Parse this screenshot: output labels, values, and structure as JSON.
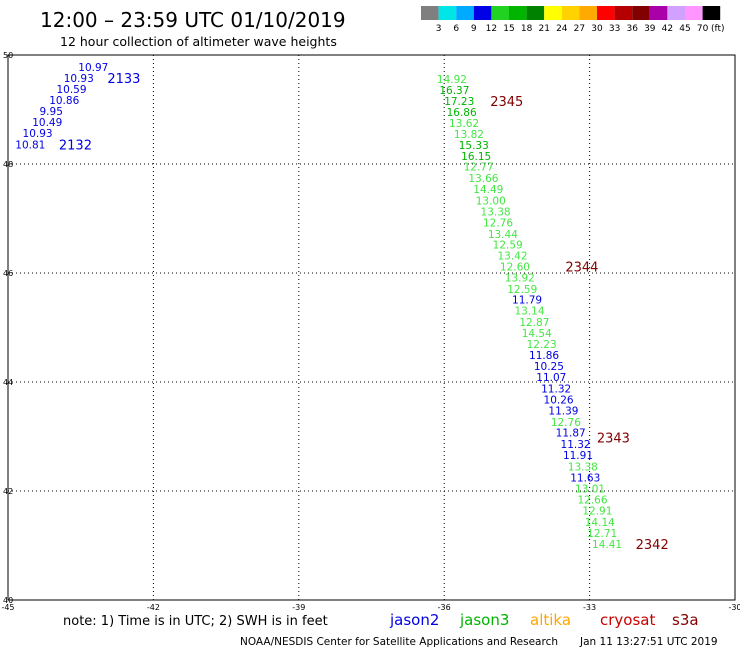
{
  "header": {
    "title": "12:00 – 23:59 UTC 01/10/2019",
    "subtitle": "12 hour collection of altimeter wave heights"
  },
  "legend_scale": {
    "labels": [
      "3",
      "6",
      "9",
      "12",
      "15",
      "18",
      "21",
      "24",
      "27",
      "30",
      "33",
      "36",
      "39",
      "42",
      "45",
      "70"
    ],
    "unit": "(ft)",
    "colors": [
      "#7f7f7f",
      "#00e6e6",
      "#00aaff",
      "#0000e6",
      "#22d222",
      "#00b400",
      "#008200",
      "#ffff00",
      "#ffd200",
      "#ffaa00",
      "#ff0000",
      "#b40000",
      "#820000",
      "#aa00aa",
      "#d2a0ff",
      "#ff96ff",
      "#000000"
    ]
  },
  "satellites": [
    {
      "name": "jason2",
      "color": "#0000e6"
    },
    {
      "name": "jason3",
      "color": "#00b400"
    },
    {
      "name": "altika",
      "color": "#ffa500"
    },
    {
      "name": "cryosat",
      "color": "#c80000"
    },
    {
      "name": "s3a",
      "color": "#820000"
    }
  ],
  "note": "note: 1) Time is in UTC; 2) SWH is in feet",
  "footer": {
    "agency": "NOAA/NESDIS Center for Satellite Applications and Research",
    "timestamp": "Jan 11 13:27:51 UTC 2019"
  },
  "chart_data": {
    "type": "scatter",
    "xlim": [
      -45,
      -30
    ],
    "ylim": [
      40,
      50
    ],
    "x_ticks": [
      "-45",
      "-42",
      "-39",
      "-36",
      "-33",
      "-30"
    ],
    "y_ticks": [
      "40",
      "42",
      "44",
      "46",
      "48",
      "50"
    ],
    "grid": true,
    "value_colors": {
      "jason2": "#0000e6",
      "light_green": "#44e644",
      "green": "#00b400"
    },
    "tracks": [
      {
        "name": "jason2",
        "points": [
          {
            "lon": -43.55,
            "lat": 49.78,
            "v": "10.97"
          },
          {
            "lon": -43.85,
            "lat": 49.58,
            "v": "10.93"
          },
          {
            "lon": -44.0,
            "lat": 49.38,
            "v": "10.59"
          },
          {
            "lon": -44.15,
            "lat": 49.17,
            "v": "10.86"
          },
          {
            "lon": -44.35,
            "lat": 48.97,
            "v": "9.95"
          },
          {
            "lon": -44.5,
            "lat": 48.77,
            "v": "10.49"
          },
          {
            "lon": -44.7,
            "lat": 48.57,
            "v": "10.93"
          },
          {
            "lon": -44.85,
            "lat": 48.36,
            "v": "10.81"
          }
        ]
      },
      {
        "name": "ascending-track",
        "points": [
          {
            "lon": -36.15,
            "lat": 49.56,
            "v": "14.92",
            "c": "light_green"
          },
          {
            "lon": -36.1,
            "lat": 49.36,
            "v": "16.37",
            "c": "green"
          },
          {
            "lon": -36.0,
            "lat": 49.16,
            "v": "17.23",
            "c": "green"
          },
          {
            "lon": -35.95,
            "lat": 48.95,
            "v": "16.86",
            "c": "green"
          },
          {
            "lon": -35.9,
            "lat": 48.75,
            "v": "13.62",
            "c": "light_green"
          },
          {
            "lon": -35.8,
            "lat": 48.55,
            "v": "13.82",
            "c": "light_green"
          },
          {
            "lon": -35.7,
            "lat": 48.35,
            "v": "15.33",
            "c": "green"
          },
          {
            "lon": -35.65,
            "lat": 48.15,
            "v": "16.15",
            "c": "green"
          },
          {
            "lon": -35.6,
            "lat": 47.95,
            "v": "12.77",
            "c": "light_green"
          },
          {
            "lon": -35.5,
            "lat": 47.74,
            "v": "13.66",
            "c": "light_green"
          },
          {
            "lon": -35.4,
            "lat": 47.54,
            "v": "14.49",
            "c": "light_green"
          },
          {
            "lon": -35.35,
            "lat": 47.33,
            "v": "13.00",
            "c": "light_green"
          },
          {
            "lon": -35.25,
            "lat": 47.13,
            "v": "13.38",
            "c": "light_green"
          },
          {
            "lon": -35.2,
            "lat": 46.93,
            "v": "12.76",
            "c": "light_green"
          },
          {
            "lon": -35.1,
            "lat": 46.72,
            "v": "13.44",
            "c": "light_green"
          },
          {
            "lon": -35.0,
            "lat": 46.52,
            "v": "12.59",
            "c": "light_green"
          },
          {
            "lon": -34.9,
            "lat": 46.32,
            "v": "13.42",
            "c": "light_green"
          },
          {
            "lon": -34.85,
            "lat": 46.12,
            "v": "12.60",
            "c": "light_green"
          },
          {
            "lon": -34.75,
            "lat": 45.92,
            "v": "13.92",
            "c": "light_green"
          },
          {
            "lon": -34.7,
            "lat": 45.71,
            "v": "12.59",
            "c": "light_green"
          },
          {
            "lon": -34.6,
            "lat": 45.51,
            "v": "11.79",
            "c": "jason2"
          },
          {
            "lon": -34.55,
            "lat": 45.31,
            "v": "13.14",
            "c": "light_green"
          },
          {
            "lon": -34.45,
            "lat": 45.1,
            "v": "12.87",
            "c": "light_green"
          },
          {
            "lon": -34.4,
            "lat": 44.9,
            "v": "14.54",
            "c": "light_green"
          },
          {
            "lon": -34.3,
            "lat": 44.7,
            "v": "12.23",
            "c": "light_green"
          },
          {
            "lon": -34.25,
            "lat": 44.5,
            "v": "11.86",
            "c": "jason2"
          },
          {
            "lon": -34.15,
            "lat": 44.29,
            "v": "10.25",
            "c": "jason2"
          },
          {
            "lon": -34.1,
            "lat": 44.09,
            "v": "11.07",
            "c": "jason2"
          },
          {
            "lon": -34.0,
            "lat": 43.88,
            "v": "11.32",
            "c": "jason2"
          },
          {
            "lon": -33.95,
            "lat": 43.68,
            "v": "10.26",
            "c": "jason2"
          },
          {
            "lon": -33.85,
            "lat": 43.48,
            "v": "11.39",
            "c": "jason2"
          },
          {
            "lon": -33.8,
            "lat": 43.27,
            "v": "12.76",
            "c": "light_green"
          },
          {
            "lon": -33.7,
            "lat": 43.07,
            "v": "11.87",
            "c": "jason2"
          },
          {
            "lon": -33.6,
            "lat": 42.86,
            "v": "11.32",
            "c": "jason2"
          },
          {
            "lon": -33.55,
            "lat": 42.66,
            "v": "11.91",
            "c": "jason2"
          },
          {
            "lon": -33.45,
            "lat": 42.45,
            "v": "13.38",
            "c": "light_green"
          },
          {
            "lon": -33.4,
            "lat": 42.25,
            "v": "11.63",
            "c": "jason2"
          },
          {
            "lon": -33.3,
            "lat": 42.05,
            "v": "13.01",
            "c": "light_green"
          },
          {
            "lon": -33.25,
            "lat": 41.84,
            "v": "12.66",
            "c": "light_green"
          },
          {
            "lon": -33.15,
            "lat": 41.64,
            "v": "12.91",
            "c": "light_green"
          },
          {
            "lon": -33.1,
            "lat": 41.43,
            "v": "14.14",
            "c": "light_green"
          },
          {
            "lon": -33.05,
            "lat": 41.23,
            "v": "12.71",
            "c": "light_green"
          },
          {
            "lon": -32.95,
            "lat": 41.03,
            "v": "14.41",
            "c": "light_green"
          }
        ]
      }
    ],
    "time_labels": [
      {
        "text": "2133",
        "lon": -42.95,
        "lat": 49.58,
        "color": "#0000e6"
      },
      {
        "text": "2132",
        "lon": -43.95,
        "lat": 48.36,
        "color": "#0000e6"
      },
      {
        "text": "2345",
        "lon": -35.05,
        "lat": 49.16,
        "color": "#820000"
      },
      {
        "text": "2344",
        "lon": -33.5,
        "lat": 46.12,
        "color": "#820000"
      },
      {
        "text": "2343",
        "lon": -32.85,
        "lat": 42.98,
        "color": "#820000"
      },
      {
        "text": "2342",
        "lon": -32.05,
        "lat": 41.03,
        "color": "#820000"
      }
    ]
  }
}
